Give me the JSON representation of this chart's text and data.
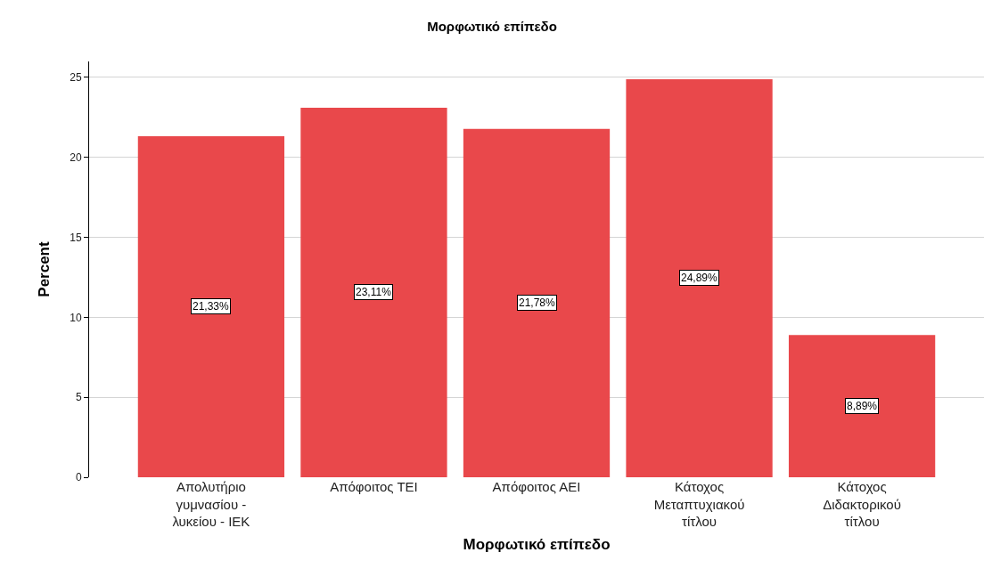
{
  "chart_data": {
    "type": "bar",
    "title": "Μορφωτικό επίπεδο",
    "xlabel": "Μορφωτικό επίπεδο",
    "ylabel": "Percent",
    "categories": [
      "Απολυτήριο γυμνασίου - λυκείου - ΙΕΚ",
      "Απόφοιτος ΤΕΙ",
      "Απόφοιτος ΑΕΙ",
      "Κάτοχος Μεταπτυχιακού τίτλου",
      "Κάτοχος Διδακτορικού τίτλου"
    ],
    "values": [
      21.33,
      23.11,
      21.78,
      24.89,
      8.89
    ],
    "value_labels": [
      "21,33%",
      "23,11%",
      "21,78%",
      "24,89%",
      "8,89%"
    ],
    "color": "#e9484b",
    "ylim": [
      0,
      26
    ],
    "yticks": [
      0,
      5,
      10,
      15,
      20,
      25
    ],
    "grid": "y"
  }
}
